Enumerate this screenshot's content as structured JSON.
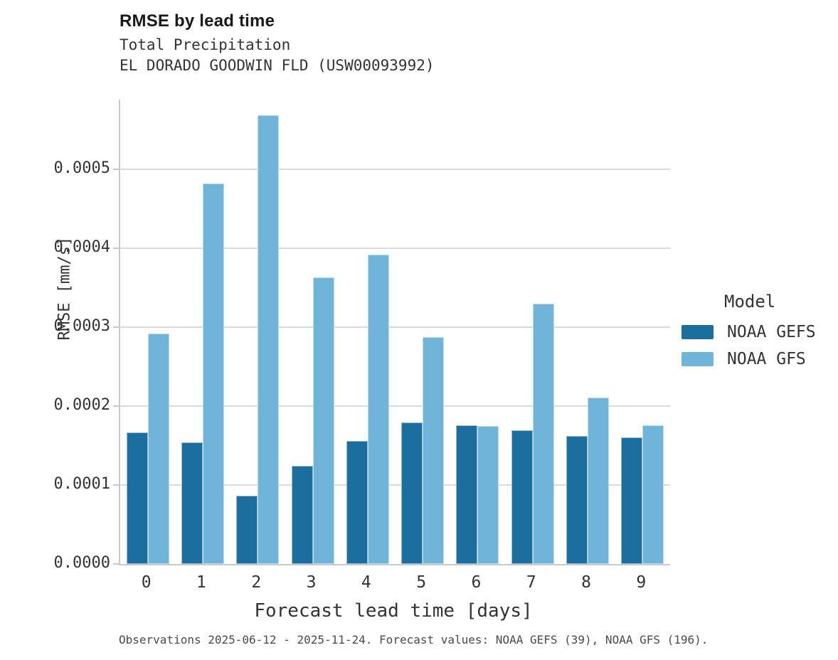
{
  "title": "RMSE by lead time",
  "subtitle_line1": "Total Precipitation",
  "subtitle_line2": "EL DORADO GOODWIN FLD (USW00093992)",
  "footer_note": "Observations 2025-06-12 - 2025-11-24. Forecast values: NOAA GEFS (39), NOAA GFS (196).",
  "legend": {
    "title": "Model",
    "entries": [
      {
        "label": "NOAA GEFS",
        "color": "#1b6e9e"
      },
      {
        "label": "NOAA GFS",
        "color": "#71b4da"
      }
    ]
  },
  "colors": {
    "gefs_bar": "#1b6e9e",
    "gfs_bar": "#71b4da",
    "gridline": "#d9d9d9",
    "axis_spine": "#c9c9c9",
    "text": "#333333",
    "footer_text": "#4a4a4a"
  },
  "chart_data": {
    "type": "bar",
    "title": "RMSE by lead time",
    "subtitle": "Total Precipitation — EL DORADO GOODWIN FLD (USW00093992)",
    "xlabel": "Forecast lead time [days]",
    "ylabel": "RMSE [mm/s]",
    "categories": [
      "0",
      "1",
      "2",
      "3",
      "4",
      "5",
      "6",
      "7",
      "8",
      "9"
    ],
    "series": [
      {
        "name": "NOAA GEFS",
        "color": "#1b6e9e",
        "values": [
          0.000167,
          0.000154,
          8.6e-05,
          0.000124,
          0.000156,
          0.000179,
          0.000176,
          0.000169,
          0.000162,
          0.00016
        ]
      },
      {
        "name": "NOAA GFS",
        "color": "#71b4da",
        "values": [
          0.000292,
          0.000482,
          0.000568,
          0.000363,
          0.000392,
          0.000287,
          0.000175,
          0.00033,
          0.000211,
          0.000176
        ]
      }
    ],
    "ylim": [
      0,
      0.000588
    ],
    "yticks": [
      0.0,
      0.0001,
      0.0002,
      0.0003,
      0.0004,
      0.0005
    ],
    "ytick_labels": [
      "0.0000",
      "0.0001",
      "0.0002",
      "0.0003",
      "0.0004",
      "0.0005"
    ],
    "grid": true,
    "legend_position": "right",
    "legend_title": "Model"
  }
}
